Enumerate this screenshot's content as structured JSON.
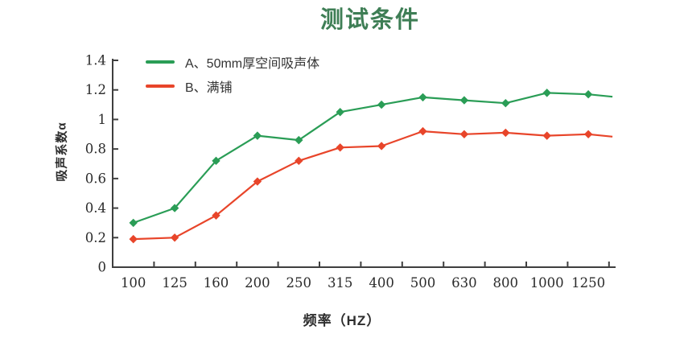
{
  "title": "测试条件",
  "colors": {
    "title_green": "#3e7e55",
    "series_a_green": "#2a9d56",
    "series_b_red": "#e8452a",
    "axis": "#3f3f3f",
    "tick_text": "#2b2b2b"
  },
  "legend": [
    {
      "label": "A、50mm厚空间吸声体",
      "color": "#2a9d56"
    },
    {
      "label": "B、满铺",
      "color": "#e8452a"
    }
  ],
  "chart_data": {
    "type": "line",
    "title": "测试条件",
    "xlabel": "频率（HZ）",
    "ylabel": "吸声系数α",
    "x_axis_type": "category",
    "categories": [
      "100",
      "125",
      "160",
      "200",
      "250",
      "315",
      "400",
      "500",
      "630",
      "800",
      "1000",
      "1250"
    ],
    "series": [
      {
        "name": "A、50mm厚空间吸声体",
        "color": "#2a9d56",
        "marker": "diamond",
        "values": [
          0.3,
          0.4,
          0.72,
          0.89,
          0.86,
          1.05,
          1.1,
          1.15,
          1.13,
          1.11,
          1.18,
          1.17
        ]
      },
      {
        "name": "B、满铺",
        "color": "#e8452a",
        "marker": "diamond",
        "values": [
          0.19,
          0.2,
          0.35,
          0.58,
          0.72,
          0.81,
          0.82,
          0.92,
          0.9,
          0.91,
          0.89,
          0.9
        ]
      }
    ],
    "ylim": [
      0,
      1.4
    ],
    "yticks": [
      0,
      0.2,
      0.4,
      0.6,
      0.8,
      1,
      1.2,
      1.4
    ],
    "ytick_labels": [
      "0",
      "0.2",
      "0.4",
      "0.6",
      "0.8",
      "1",
      "1.2",
      "1.4"
    ],
    "grid": false,
    "legend_position": "top-left"
  }
}
